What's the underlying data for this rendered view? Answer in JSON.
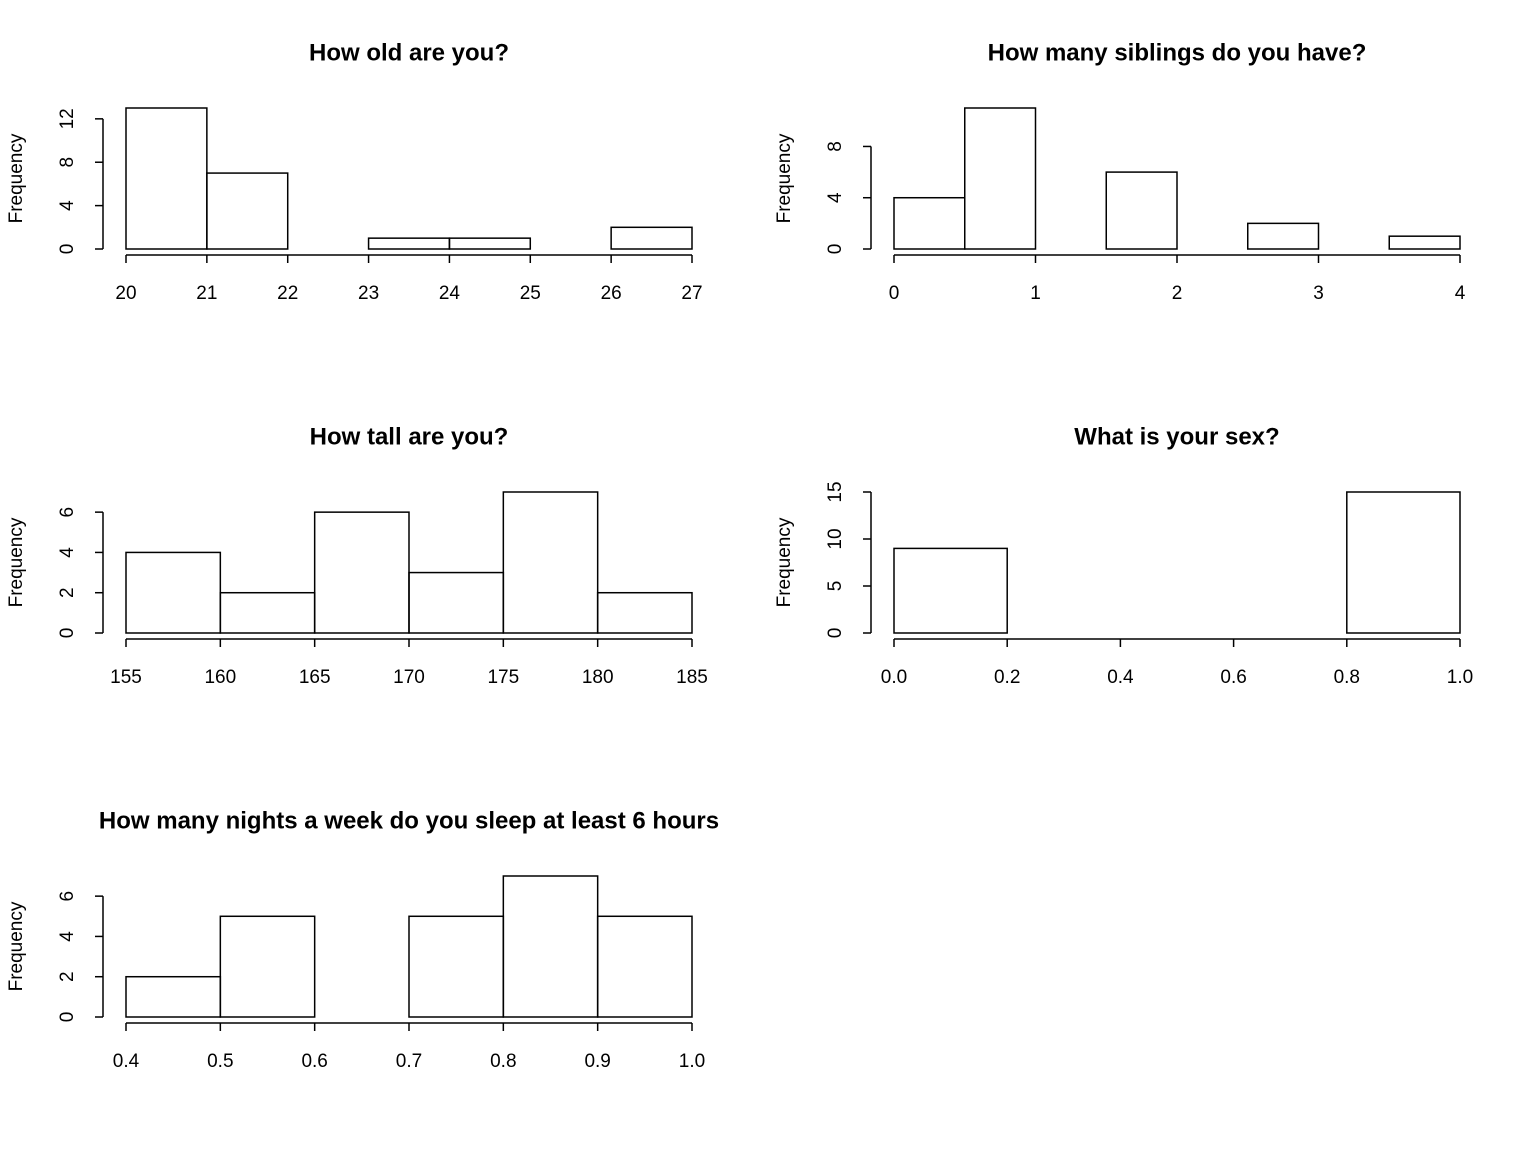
{
  "chart_data": [
    {
      "type": "histogram",
      "title": "How old are you?",
      "ylabel": "Frequency",
      "bins": [
        20,
        21,
        22,
        23,
        24,
        25,
        26,
        27
      ],
      "values": [
        13,
        7,
        0,
        1,
        1,
        0,
        2
      ],
      "xlim": [
        20,
        27
      ],
      "xticks": [
        20,
        21,
        22,
        23,
        24,
        25,
        26,
        27
      ],
      "ylim": [
        0,
        13
      ],
      "yticks": [
        0,
        4,
        8,
        12
      ],
      "color": "#000000"
    },
    {
      "type": "histogram",
      "title": "How many siblings do you have?",
      "ylabel": "Frequency",
      "bins": [
        0,
        0.5,
        1,
        1.5,
        2,
        2.5,
        3,
        3.5,
        4
      ],
      "values": [
        4,
        11,
        0,
        6,
        0,
        2,
        0,
        1
      ],
      "xlim": [
        0,
        4
      ],
      "xticks": [
        0,
        1,
        2,
        3,
        4
      ],
      "ylim": [
        0,
        11
      ],
      "yticks": [
        0,
        4,
        8
      ],
      "color": "#000000"
    },
    {
      "type": "histogram",
      "title": "How tall are you?",
      "ylabel": "Frequency",
      "bins": [
        155,
        160,
        165,
        170,
        175,
        180,
        185
      ],
      "values": [
        4,
        2,
        6,
        3,
        7,
        2
      ],
      "xlim": [
        155,
        185
      ],
      "xticks": [
        155,
        160,
        165,
        170,
        175,
        180,
        185
      ],
      "ylim": [
        0,
        7
      ],
      "yticks": [
        0,
        2,
        4,
        6
      ],
      "color": "#000000"
    },
    {
      "type": "histogram",
      "title": "What is your sex?",
      "ylabel": "Frequency",
      "bins": [
        0,
        0.2,
        0.4,
        0.6,
        0.8,
        1
      ],
      "values": [
        9,
        0,
        0,
        0,
        15
      ],
      "xlim": [
        0,
        1
      ],
      "xticks": [
        {
          "value": 0,
          "label": "0.0"
        },
        0.2,
        0.4,
        0.6,
        0.8,
        {
          "value": 1,
          "label": "1.0"
        }
      ],
      "ylim": [
        0,
        15
      ],
      "yticks": [
        0,
        5,
        10,
        15
      ],
      "color": "#000000"
    },
    {
      "type": "histogram",
      "title": "How many nights a week do you sleep at least 6 hours",
      "ylabel": "Frequency",
      "bins": [
        0.4,
        0.5,
        0.6,
        0.7,
        0.8,
        0.9,
        1
      ],
      "values": [
        2,
        5,
        0,
        5,
        7,
        5
      ],
      "xlim": [
        0.4,
        1
      ],
      "xticks": [
        0.4,
        0.5,
        0.6,
        0.7,
        0.8,
        0.9,
        {
          "value": 1,
          "label": "1.0"
        }
      ],
      "ylim": [
        0,
        7
      ],
      "yticks": [
        0,
        2,
        4,
        6
      ],
      "color": "#000000"
    }
  ]
}
